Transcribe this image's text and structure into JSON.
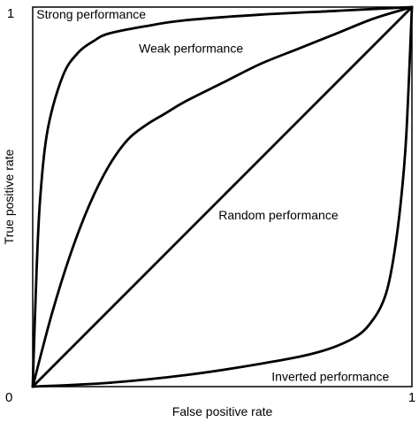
{
  "chart_data": {
    "type": "line",
    "title": "",
    "xlabel": "False positive rate",
    "ylabel": "True positive rate",
    "xlim": [
      0,
      1
    ],
    "ylim": [
      0,
      1
    ],
    "grid": false,
    "legend": "none",
    "ticks": {
      "x": [
        "0",
        "1"
      ],
      "y": [
        "0",
        "1"
      ],
      "shared_origin": "0"
    },
    "series": [
      {
        "name": "Strong performance",
        "x": [
          0,
          0.01,
          0.02,
          0.04,
          0.08,
          0.12,
          0.16,
          0.2,
          0.3,
          0.4,
          0.6,
          0.8,
          1
        ],
        "y": [
          0,
          0.3,
          0.5,
          0.68,
          0.82,
          0.88,
          0.91,
          0.93,
          0.95,
          0.965,
          0.98,
          0.99,
          1
        ]
      },
      {
        "name": "Weak performance",
        "x": [
          0,
          0.05,
          0.1,
          0.15,
          0.2,
          0.25,
          0.3,
          0.35,
          0.4,
          0.5,
          0.6,
          0.7,
          0.8,
          0.9,
          1
        ],
        "y": [
          0,
          0.19,
          0.35,
          0.48,
          0.58,
          0.65,
          0.69,
          0.72,
          0.75,
          0.8,
          0.85,
          0.89,
          0.93,
          0.97,
          1
        ]
      },
      {
        "name": "Random performance",
        "x": [
          0,
          1
        ],
        "y": [
          0,
          1
        ]
      },
      {
        "name": "Inverted performance",
        "x": [
          0,
          0.2,
          0.4,
          0.6,
          0.75,
          0.85,
          0.9,
          0.93,
          0.95,
          0.97,
          0.985,
          1
        ],
        "y": [
          0,
          0.01,
          0.03,
          0.06,
          0.09,
          0.13,
          0.18,
          0.24,
          0.33,
          0.48,
          0.66,
          1
        ]
      }
    ],
    "annotations": [
      {
        "text": "Strong performance",
        "x": 0.01,
        "y": 0.97,
        "anchor": "start"
      },
      {
        "text": "Weak performance",
        "x": 0.28,
        "y": 0.88,
        "anchor": "start"
      },
      {
        "text": "Random performance",
        "x": 0.49,
        "y": 0.44,
        "anchor": "start"
      },
      {
        "text": "Inverted performance",
        "x": 0.63,
        "y": 0.015,
        "anchor": "start"
      }
    ]
  }
}
